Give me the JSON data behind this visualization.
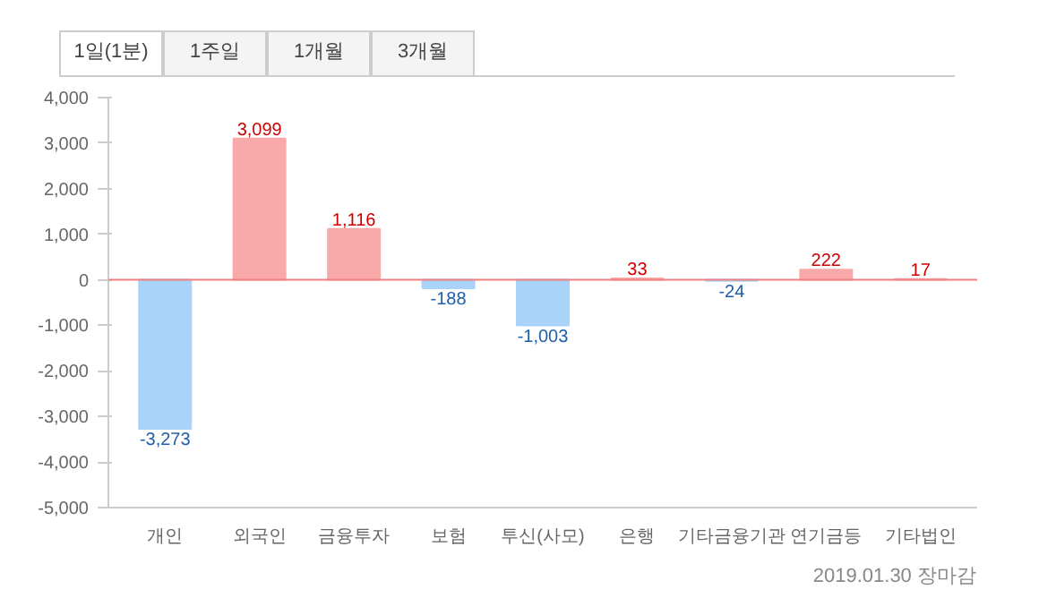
{
  "chart_data": {
    "type": "bar",
    "categories": [
      "개인",
      "외국인",
      "금융투자",
      "보험",
      "투신(사모)",
      "은행",
      "기타금융기관",
      "연기금등",
      "기타법인"
    ],
    "values": [
      -3273,
      3099,
      1116,
      -188,
      -1003,
      33,
      -24,
      222,
      17
    ],
    "colors": [
      "#a9d3f9",
      "#f9a9a9",
      "#f9a9a9",
      "#a9d3f9",
      "#a9d3f9",
      "#f9a9a9",
      "#a9d3f9",
      "#f9a9a9",
      "#f9a9a9"
    ],
    "value_labels": [
      "-3,273",
      "3,099",
      "1,116",
      "-188",
      "-1,003",
      "33",
      "-24",
      "222",
      "17"
    ],
    "ylim": [
      -5000,
      4000
    ],
    "yticks": [
      {
        "value": -5000,
        "label": "-5,000"
      },
      {
        "value": -4000,
        "label": "-4,000"
      },
      {
        "value": -3000,
        "label": "-3,000"
      },
      {
        "value": -2000,
        "label": "-2,000"
      },
      {
        "value": -1000,
        "label": "-1,000"
      },
      0,
      {
        "value": 1000,
        "label": "1,000"
      },
      {
        "value": 2000,
        "label": "2,000"
      },
      {
        "value": 3000,
        "label": "3,000"
      },
      {
        "value": 4000,
        "label": "4,000"
      }
    ],
    "ref_lines": [
      {
        "axis": "y",
        "value": 0,
        "color": "#f08080"
      }
    ],
    "grid": false,
    "annotations": [
      "1일(1분)",
      "1주일",
      "1개월",
      "3개월",
      "2019.01.30 장마감"
    ]
  }
}
